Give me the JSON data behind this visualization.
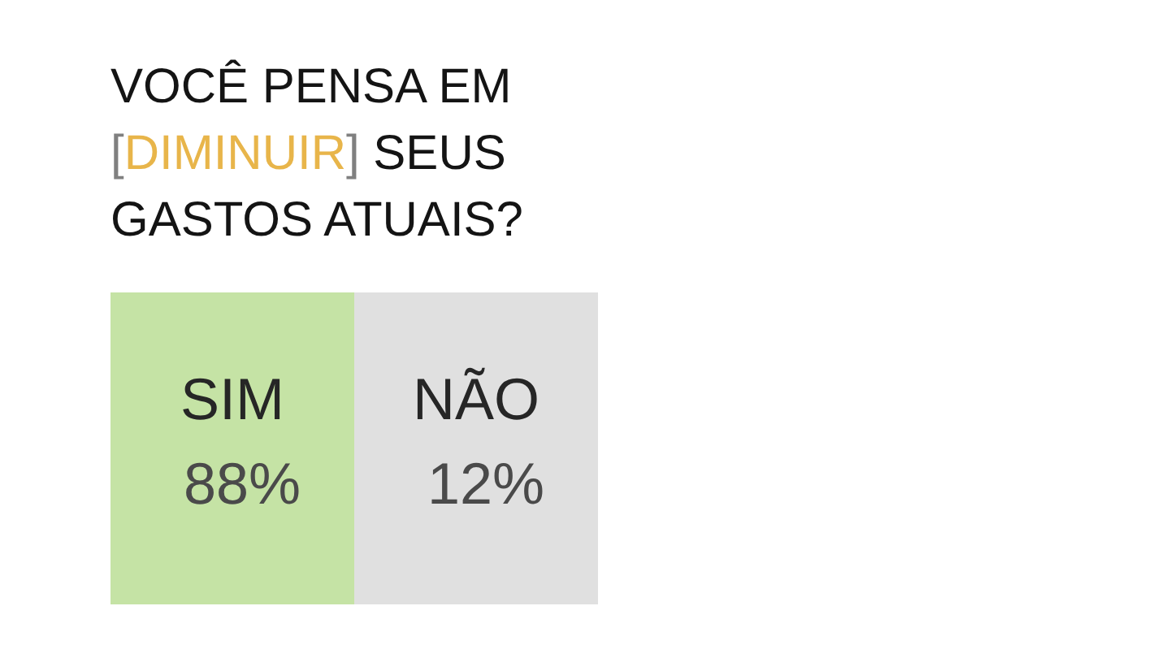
{
  "chart_data": {
    "type": "other",
    "title": "VOCÊ PENSA EM [DIMINUIR] SEUS GASTOS ATUAIS?",
    "categories": [
      "SIM",
      "NÃO"
    ],
    "values": [
      88,
      12
    ],
    "value_labels": [
      "88%",
      "12%"
    ],
    "colors": [
      "#c5e3a5",
      "#e0e0e0"
    ]
  }
}
